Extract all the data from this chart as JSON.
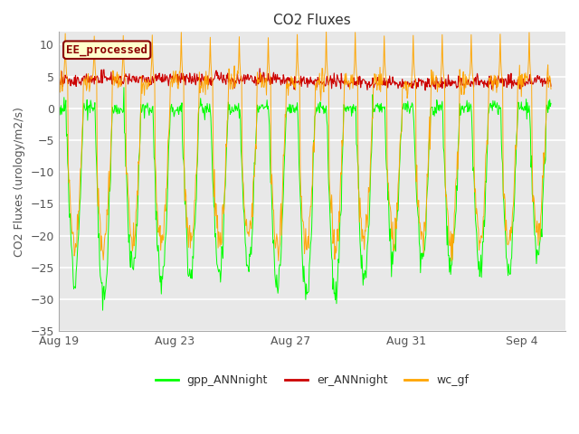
{
  "title": "CO2 Fluxes",
  "ylabel": "CO2 Fluxes (urology/m2/s)",
  "xlabel": "",
  "ylim": [
    -35,
    12
  ],
  "yticks": [
    -35,
    -30,
    -25,
    -20,
    -15,
    -10,
    -5,
    0,
    5,
    10
  ],
  "xlim_days": [
    0,
    17.5
  ],
  "xtick_labels": [
    "Aug 19",
    "Aug 23",
    "Aug 27",
    "Aug 31",
    "Sep 4"
  ],
  "xtick_days": [
    0,
    4,
    8,
    12,
    16
  ],
  "legend_label": "EE_processed",
  "legend_text_color": "#8B0000",
  "legend_box_facecolor": "#FFFFCC",
  "legend_box_edgecolor": "#8B0000",
  "line_colors": {
    "gpp_ANNnight": "#00FF00",
    "er_ANNnight": "#CC0000",
    "wc_gf": "#FFA500"
  },
  "legend_labels": [
    "gpp_ANNnight",
    "er_ANNnight",
    "wc_gf"
  ],
  "fig_bg_color": "#FFFFFF",
  "plot_bg_color": "#E8E8E8",
  "title_fontsize": 11,
  "axis_fontsize": 9,
  "tick_fontsize": 9,
  "n_points": 816,
  "days_total": 17.0,
  "halfhour_per_day": 48,
  "gpp_day_depths": [
    -26,
    -30,
    -25,
    -27,
    -26,
    -26,
    -25,
    -28,
    -30,
    -29,
    -27,
    -23,
    -23,
    -25,
    -25,
    -25,
    -24
  ],
  "wc_day_depths": [
    -22,
    -22,
    -20,
    -21,
    -21,
    -21,
    -20,
    -22,
    -22,
    -22,
    -21,
    -20,
    -20,
    -21,
    -20,
    -21,
    -20
  ]
}
